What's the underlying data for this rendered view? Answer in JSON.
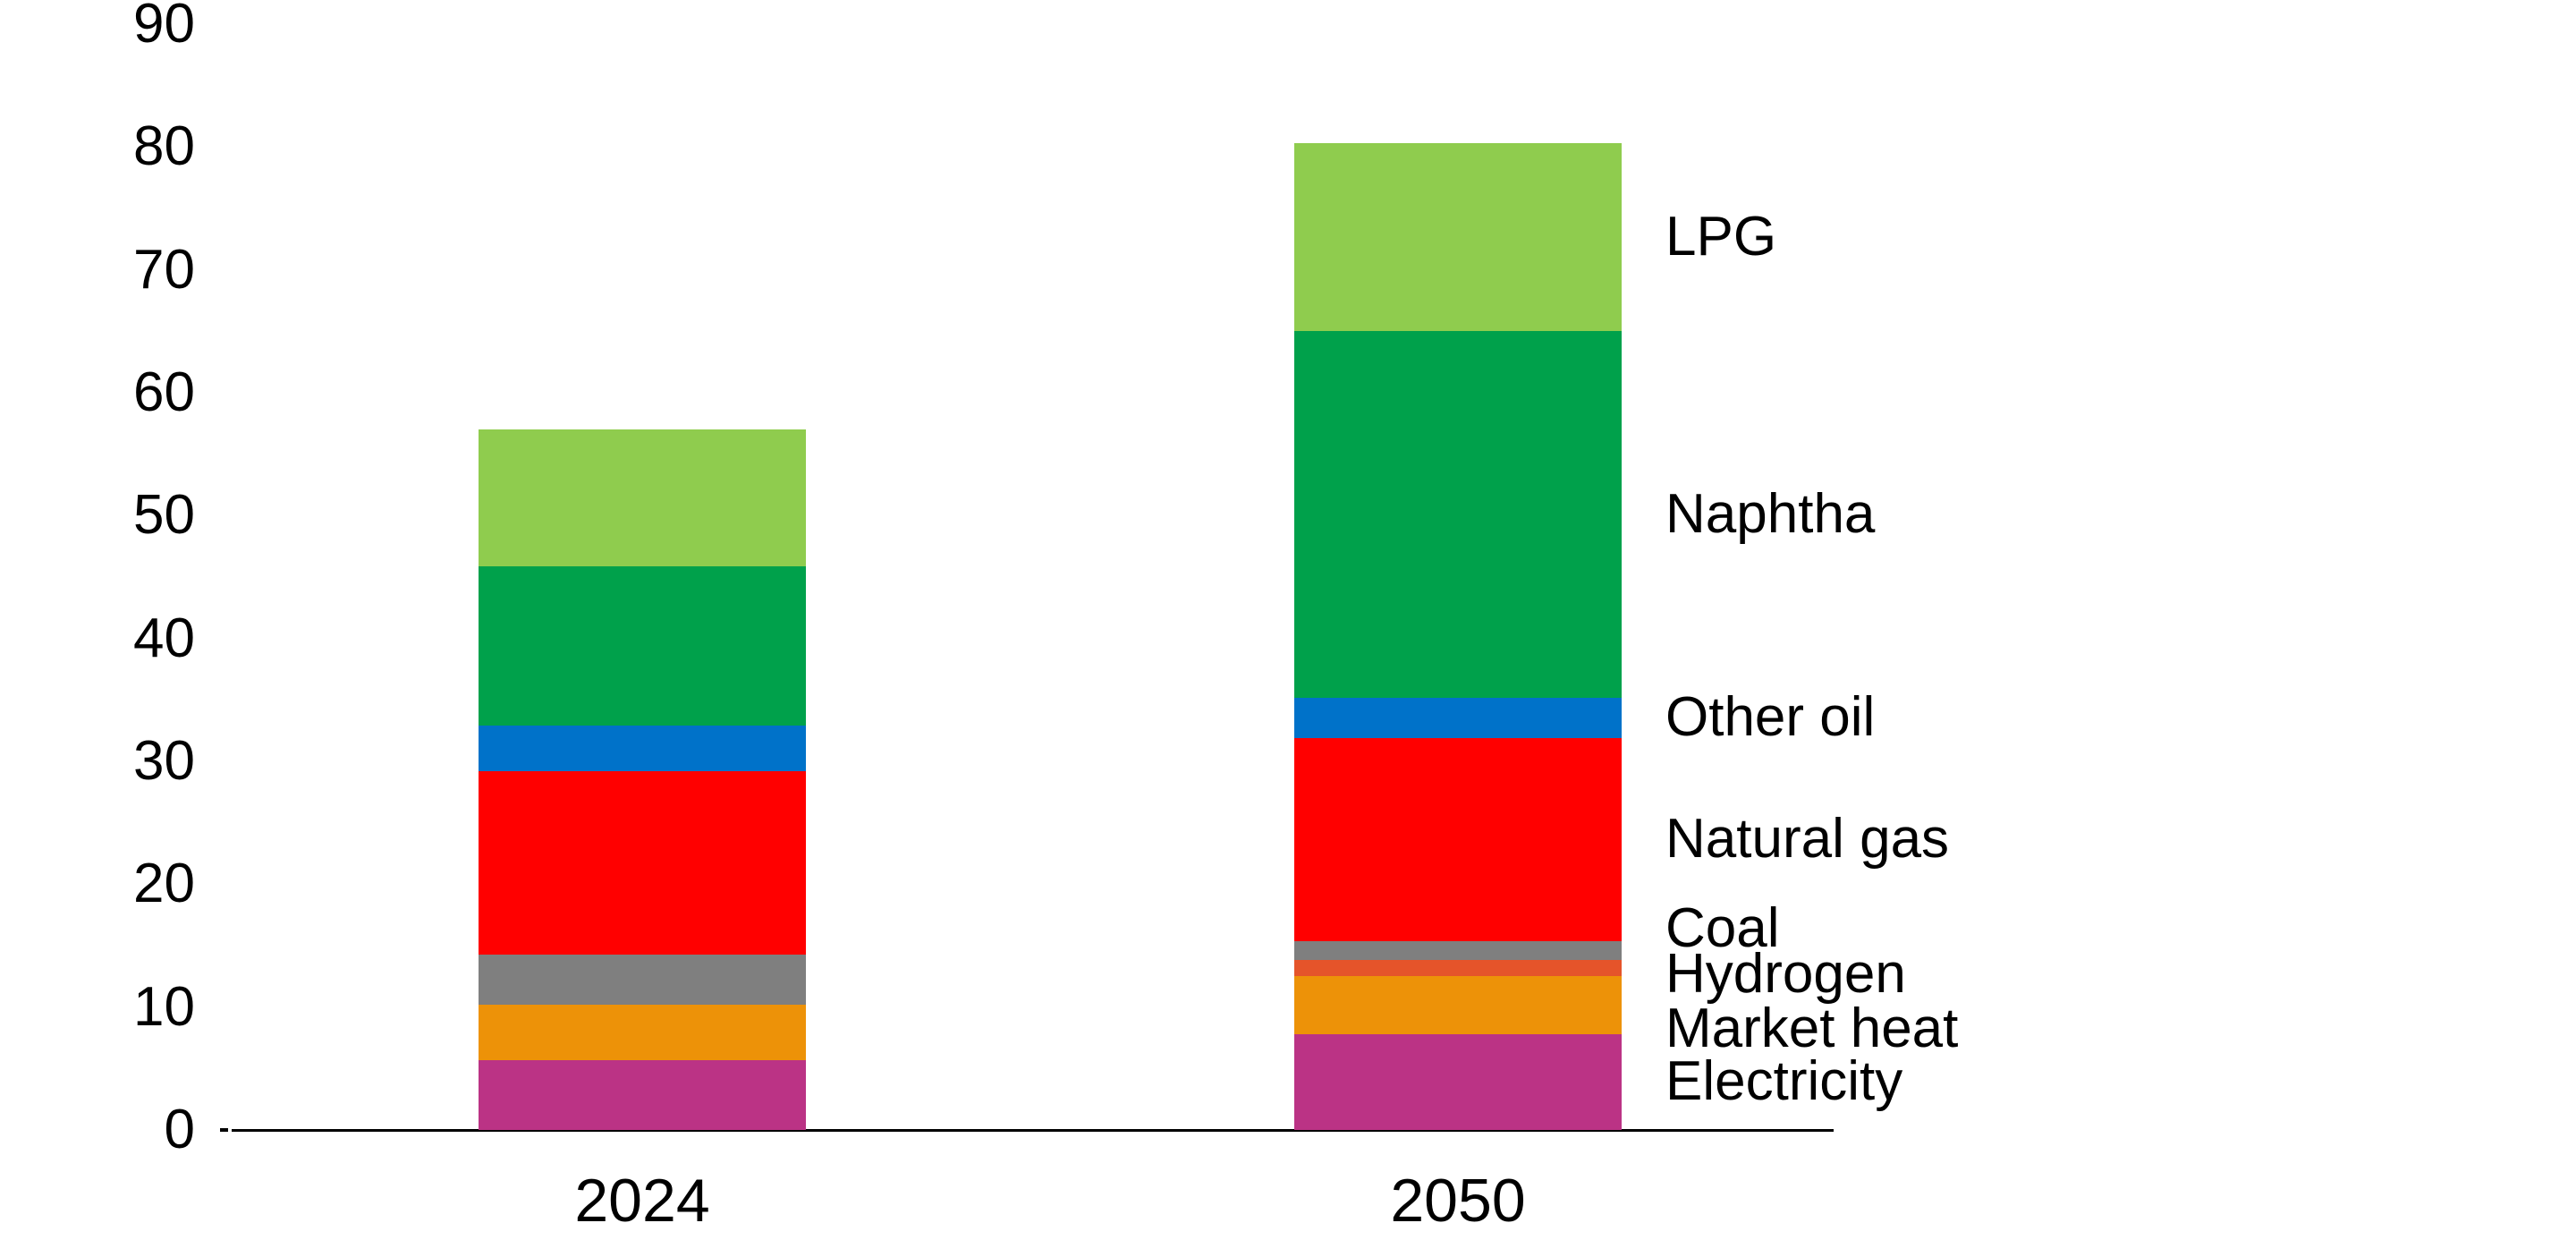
{
  "chart_data": {
    "type": "bar",
    "stacked": true,
    "title": "",
    "xlabel": "",
    "ylabel": "",
    "categories": [
      "2024",
      "2050"
    ],
    "series": [
      {
        "name": "Electricity",
        "color": "#BB3385",
        "values": [
          5.7,
          7.8
        ]
      },
      {
        "name": "Market heat",
        "color": "#ED9208",
        "values": [
          4.5,
          4.7
        ]
      },
      {
        "name": "Hydrogen",
        "color": "#E5542A",
        "values": [
          0,
          1.3
        ]
      },
      {
        "name": "Coal",
        "color": "#7F7F7F",
        "values": [
          4.1,
          1.6
        ]
      },
      {
        "name": "Natural gas",
        "color": "#FF0000",
        "values": [
          14.9,
          16.5
        ]
      },
      {
        "name": "Other oil",
        "color": "#0072C9",
        "values": [
          3.7,
          3.3
        ]
      },
      {
        "name": "Naphtha",
        "color": "#00A14B",
        "values": [
          13.0,
          29.8
        ]
      },
      {
        "name": "LPG",
        "color": "#8FCC4E",
        "values": [
          11.1,
          15.3
        ]
      }
    ],
    "totals": [
      57.0,
      80.3
    ],
    "y_axis": {
      "min": 0,
      "max": 90,
      "tick_interval": 10,
      "tick_labels": [
        "0",
        "10",
        "20",
        "30",
        "40",
        "50",
        "60",
        "70",
        "80",
        "90"
      ]
    },
    "grid": false,
    "legend_position": "right-annotations",
    "annotation_labels_top_to_bottom": [
      "LPG",
      "Naphtha",
      "Other oil",
      "Natural gas",
      "Coal",
      "Hydrogen",
      "Market heat",
      "Electricity"
    ]
  },
  "colors": {
    "background": "#FFFFFF",
    "text": "#000000",
    "axis_line": "#000000"
  }
}
